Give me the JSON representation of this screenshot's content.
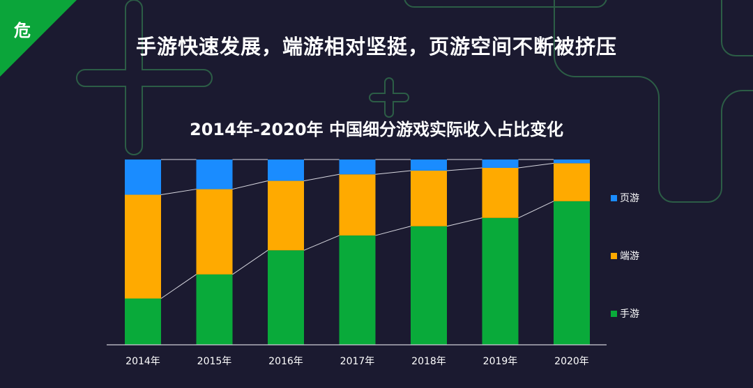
{
  "badge": {
    "label": "危",
    "color": "#0ba53a"
  },
  "headline": "手游快速发展，端游相对坚挺，页游空间不断被挤压",
  "chart_data": {
    "type": "bar",
    "stacked": "percent",
    "title": "2014年-2020年 中国细分游戏实际收入占比变化",
    "xlabel": "",
    "ylabel": "",
    "ylim": [
      0,
      100
    ],
    "categories": [
      "2014年",
      "2015年",
      "2016年",
      "2017年",
      "2018年",
      "2019年",
      "2020年"
    ],
    "series": [
      {
        "name": "手游",
        "color": "#09aa3a",
        "values": [
          25,
          38,
          51,
          59,
          64,
          68.5,
          77.5
        ]
      },
      {
        "name": "端游",
        "color": "#ffaa00",
        "values": [
          56,
          46,
          37.5,
          33,
          30,
          27,
          20.5
        ]
      },
      {
        "name": "页游",
        "color": "#1a8cff",
        "values": [
          19,
          16,
          11.5,
          8,
          6,
          4.5,
          2
        ]
      }
    ],
    "legend_order": [
      "页游",
      "端游",
      "手游"
    ],
    "connector_lines": true,
    "legend_position": "right"
  }
}
